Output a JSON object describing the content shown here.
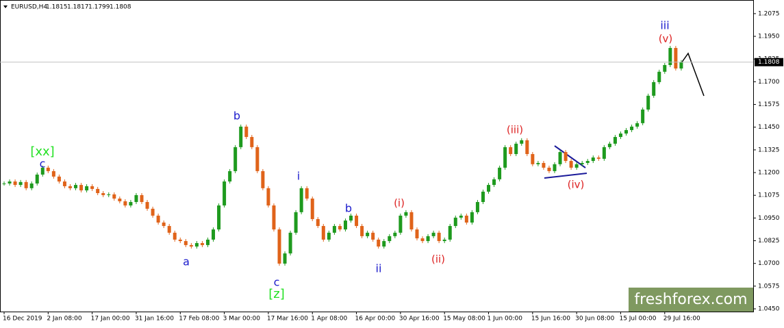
{
  "chart_data": {
    "type": "candlestick",
    "series": [
      {
        "name": "EURUSD,H4",
        "up_color": "#1e9a1e",
        "down_color": "#e0631a",
        "values": [
          1.114,
          1.1151,
          1.1132,
          1.1148,
          1.1114,
          1.114,
          1.1189,
          1.1227,
          1.1208,
          1.1178,
          1.1151,
          1.1125,
          1.1114,
          1.1132,
          1.1102,
          1.1125,
          1.111,
          1.1087,
          1.1076,
          1.108,
          1.1057,
          1.1042,
          1.1019,
          1.1038,
          1.1076,
          1.1038,
          1.1001,
          1.0963,
          1.0925,
          1.0906,
          1.0869,
          1.0831,
          1.0823,
          1.0801,
          1.0793,
          1.0812,
          1.0801,
          1.0831,
          1.0887,
          1.1019,
          1.1151,
          1.1208,
          1.134,
          1.1453,
          1.1396,
          1.134,
          1.1208,
          1.1114,
          1.1019,
          1.0887,
          1.0699,
          1.0755,
          1.0869,
          1.0982,
          1.1114,
          1.1057,
          1.0944,
          1.0906,
          1.0831,
          1.0869,
          1.0906,
          1.0887,
          1.0936,
          1.0963,
          1.0906,
          1.085,
          1.0869,
          1.0831,
          1.0793,
          1.0823,
          1.085,
          1.0869,
          1.0963,
          1.0982,
          1.0887,
          1.0838,
          1.0823,
          1.085,
          1.0869,
          1.0823,
          1.0831,
          1.0906,
          1.0952,
          1.0963,
          1.0925,
          1.0982,
          1.1038,
          1.1095,
          1.1132,
          1.1163,
          1.1227,
          1.134,
          1.1302,
          1.1359,
          1.1378,
          1.1302,
          1.1246,
          1.1253,
          1.1227,
          1.1208,
          1.1246,
          1.1313,
          1.1264,
          1.1227,
          1.1246,
          1.1253,
          1.1264,
          1.1283,
          1.1276,
          1.134,
          1.1359,
          1.1396,
          1.1415,
          1.1434,
          1.1453,
          1.1472,
          1.1547,
          1.1623,
          1.1698,
          1.1755,
          1.1792,
          1.1886,
          1.1773,
          1.1808
        ]
      }
    ],
    "categories": [
      "16 Dec 2019",
      null,
      null,
      null,
      null,
      null,
      null,
      null,
      "2 Jan 08:00",
      null,
      null,
      null,
      null,
      null,
      null,
      null,
      "17 Jan 00:00",
      null,
      null,
      null,
      null,
      null,
      null,
      null,
      "31 Jan 16:00",
      null,
      null,
      null,
      null,
      null,
      null,
      null,
      "17 Feb 08:00",
      null,
      null,
      null,
      null,
      null,
      null,
      null,
      "3 Mar 00:00",
      null,
      null,
      null,
      null,
      null,
      null,
      null,
      "17 Mar 16:00",
      null,
      null,
      null,
      null,
      null,
      null,
      null,
      "1 Apr 08:00",
      null,
      null,
      null,
      null,
      null,
      null,
      null,
      "16 Apr 00:00",
      null,
      null,
      null,
      null,
      null,
      null,
      null,
      "30 Apr 16:00",
      null,
      null,
      null,
      null,
      null,
      null,
      null,
      "15 May 08:00",
      null,
      null,
      null,
      null,
      null,
      null,
      null,
      "1 Jun 00:00",
      null,
      null,
      null,
      null,
      null,
      null,
      null,
      "15 Jun 16:00",
      null,
      null,
      null,
      null,
      null,
      null,
      null,
      "30 Jun 08:00",
      null,
      null,
      null,
      null,
      null,
      null,
      null,
      "15 Jul 00:00",
      null,
      null,
      null,
      null,
      null,
      null,
      null,
      "29 Jul 16:00",
      null,
      null,
      null
    ],
    "last_ohlc": [
      1.1815,
      1.1817,
      1.1799,
      1.1808
    ],
    "current_price": 1.1808,
    "ylim": [
      1.0435,
      1.215
    ],
    "yticks": [
      1.2075,
      {
        "value": 1.195,
        "label": "1.1950"
      },
      1.1825,
      {
        "value": 1.17,
        "label": "1.1700"
      },
      1.1575,
      {
        "value": 1.145,
        "label": "1.1450"
      },
      1.1325,
      {
        "value": 1.12,
        "label": "1.1200"
      },
      1.1075,
      {
        "value": 1.095,
        "label": "1.0950"
      },
      1.0825,
      {
        "value": 1.07,
        "label": "1.0700"
      },
      1.0575,
      {
        "value": 1.045,
        "label": "1.0450"
      }
    ],
    "annotations": [
      {
        "text": "[xx]",
        "color": "#22e022"
      },
      {
        "text": "c",
        "color": "#1a1acc"
      },
      {
        "text": "b",
        "color": "#1a1acc"
      },
      {
        "text": "a",
        "color": "#1a1acc"
      },
      {
        "text": "c",
        "color": "#1a1acc"
      },
      {
        "text": "[z]",
        "color": "#22e022"
      },
      {
        "text": "i",
        "color": "#1a1acc"
      },
      {
        "text": "b",
        "color": "#1a1acc"
      },
      {
        "text": "ii",
        "color": "#1a1acc"
      },
      {
        "text": "(i)",
        "color": "#dd2222"
      },
      {
        "text": "(ii)",
        "color": "#dd2222"
      },
      {
        "text": "(iii)",
        "color": "#dd2222"
      },
      {
        "text": "(iv)",
        "color": "#dd2222"
      },
      {
        "text": "iii",
        "color": "#1a1acc"
      },
      {
        "text": "(v)",
        "color": "#dd2222"
      }
    ],
    "watermark": "freshforex.com"
  }
}
